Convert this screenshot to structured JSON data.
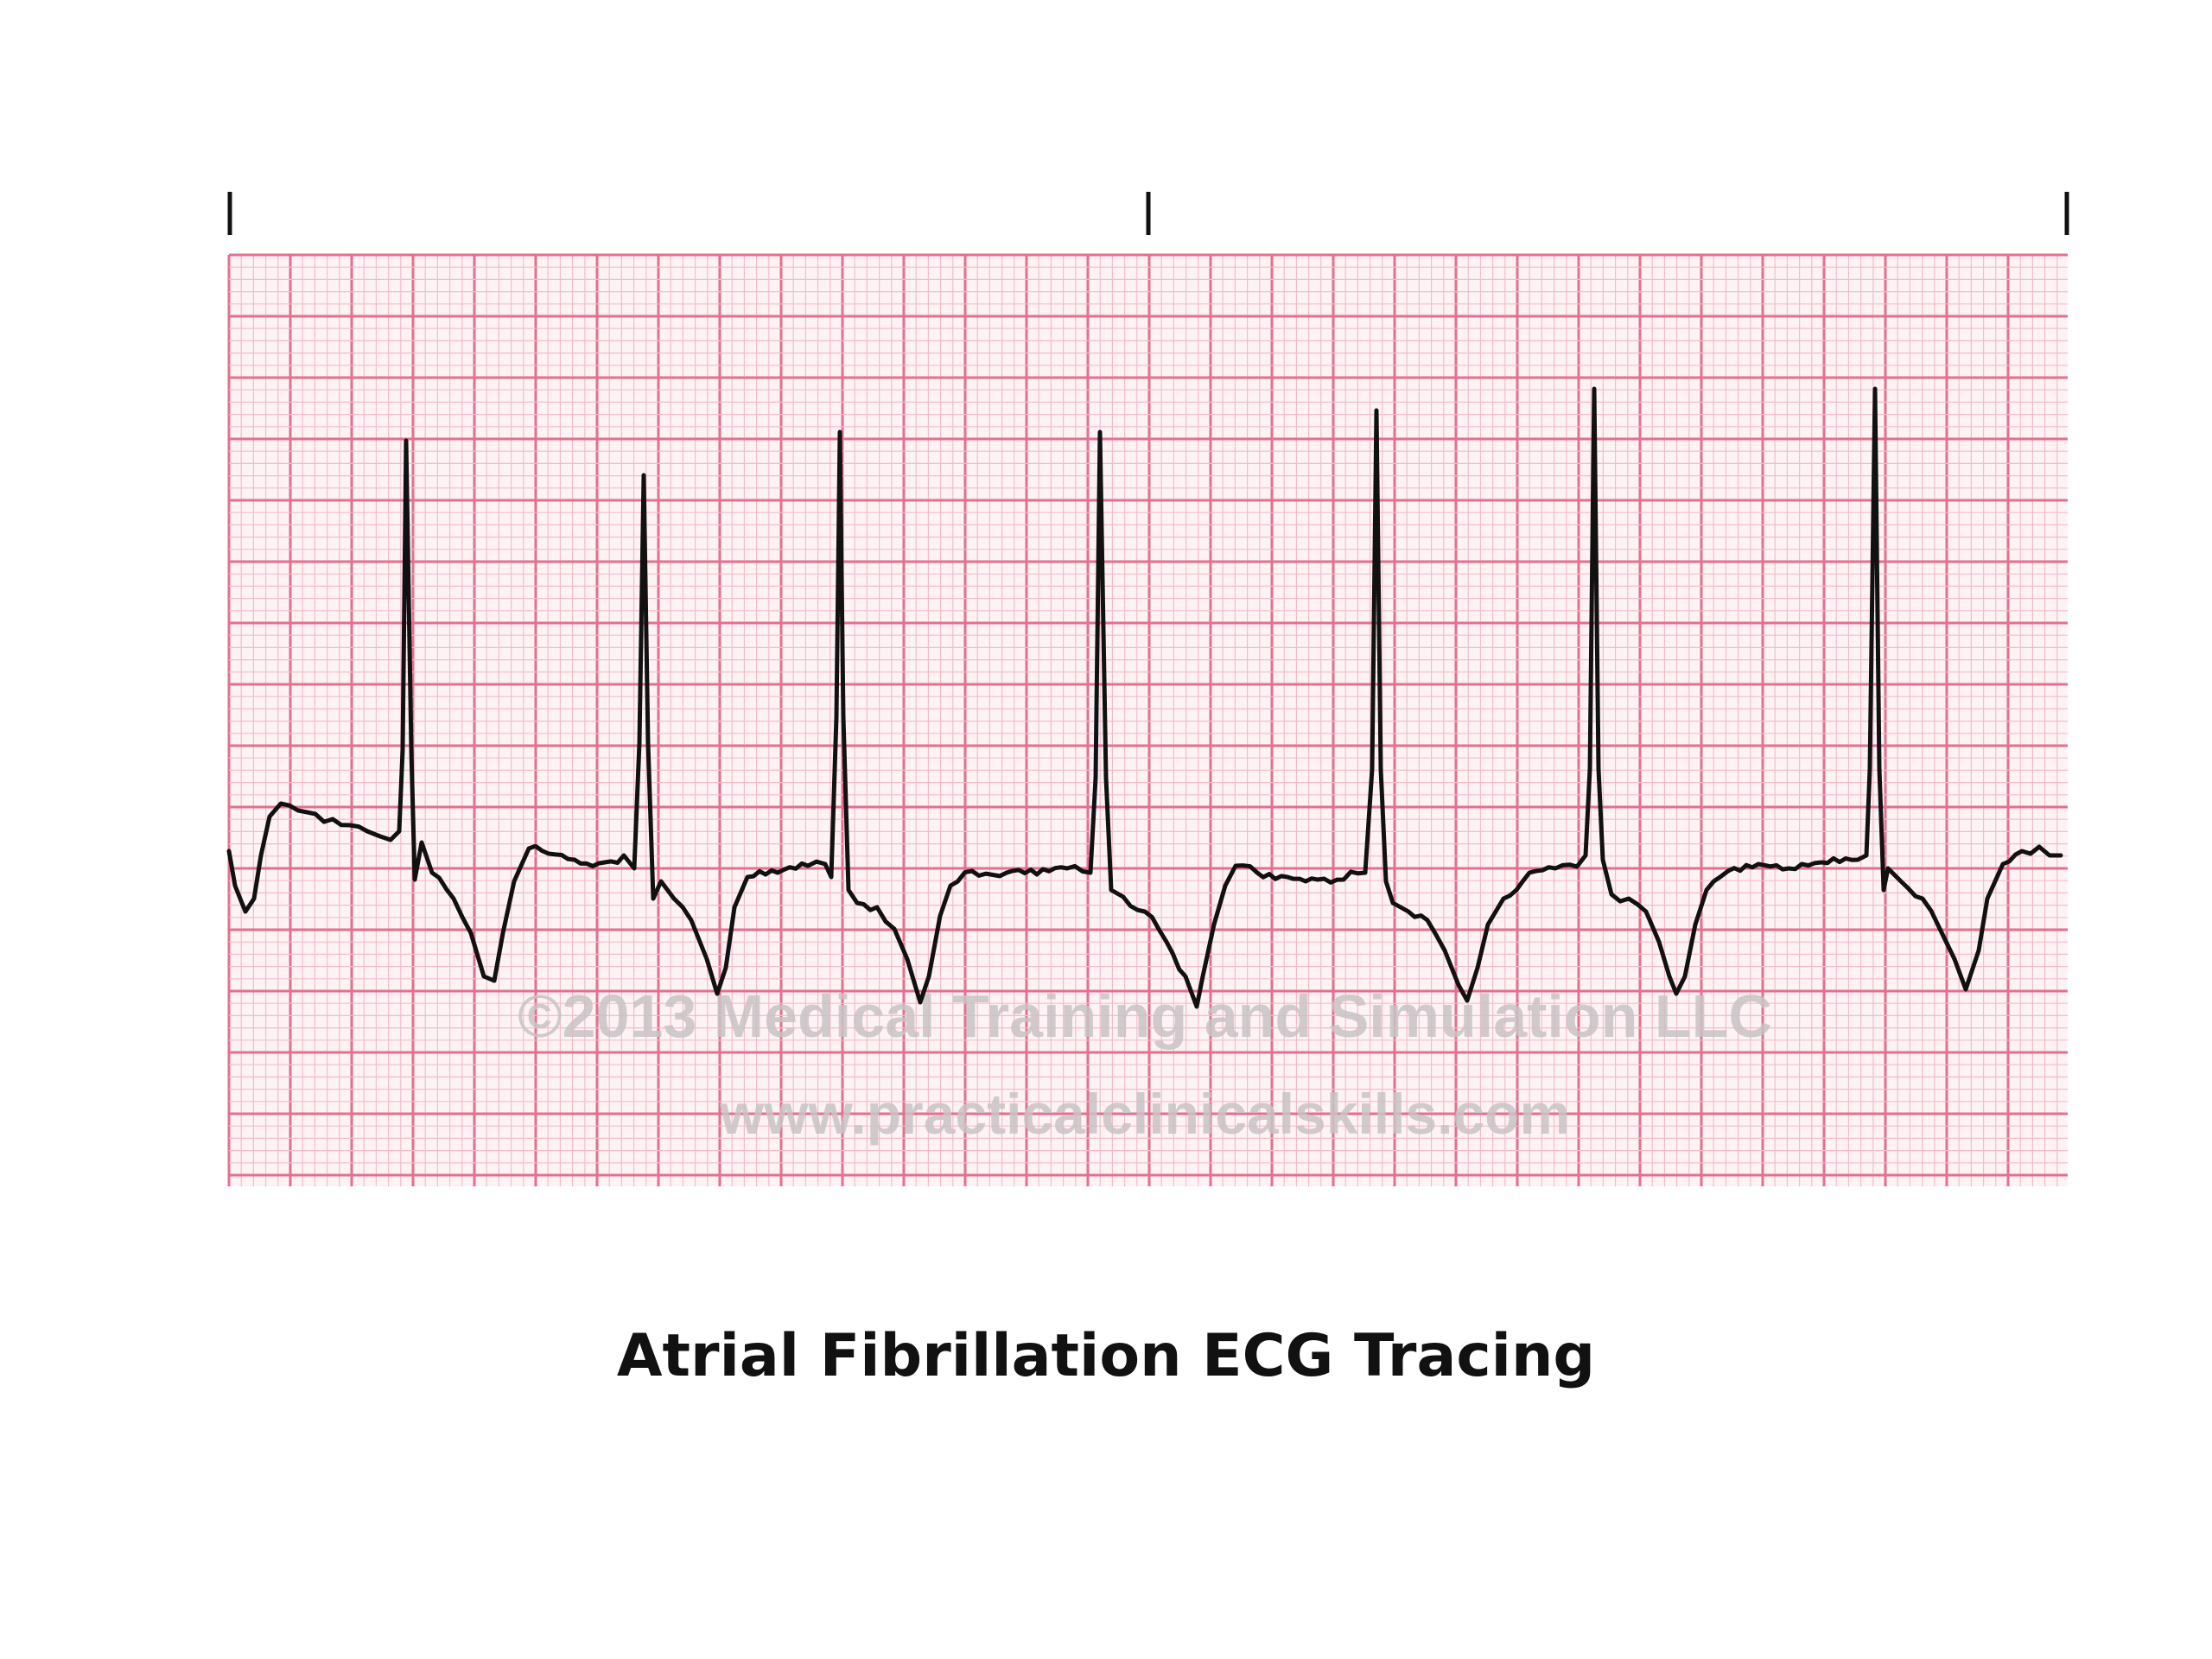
{
  "figure": {
    "caption": "Atrial Fibrillation ECG Tracing",
    "watermark_line1": "©2013 Medical Training and Simulation LLC",
    "watermark_line2": "www.practicalclinicalskills.com"
  },
  "rhythm": {
    "qrs_complex_count": 7
  },
  "colors": {
    "background": "#ffffff",
    "grid_paper": "#fdf3f5",
    "grid_minor": "#f3bccb",
    "grid_major": "#e46f8e",
    "trace": "#111111",
    "watermark": "#c9c3c6"
  }
}
